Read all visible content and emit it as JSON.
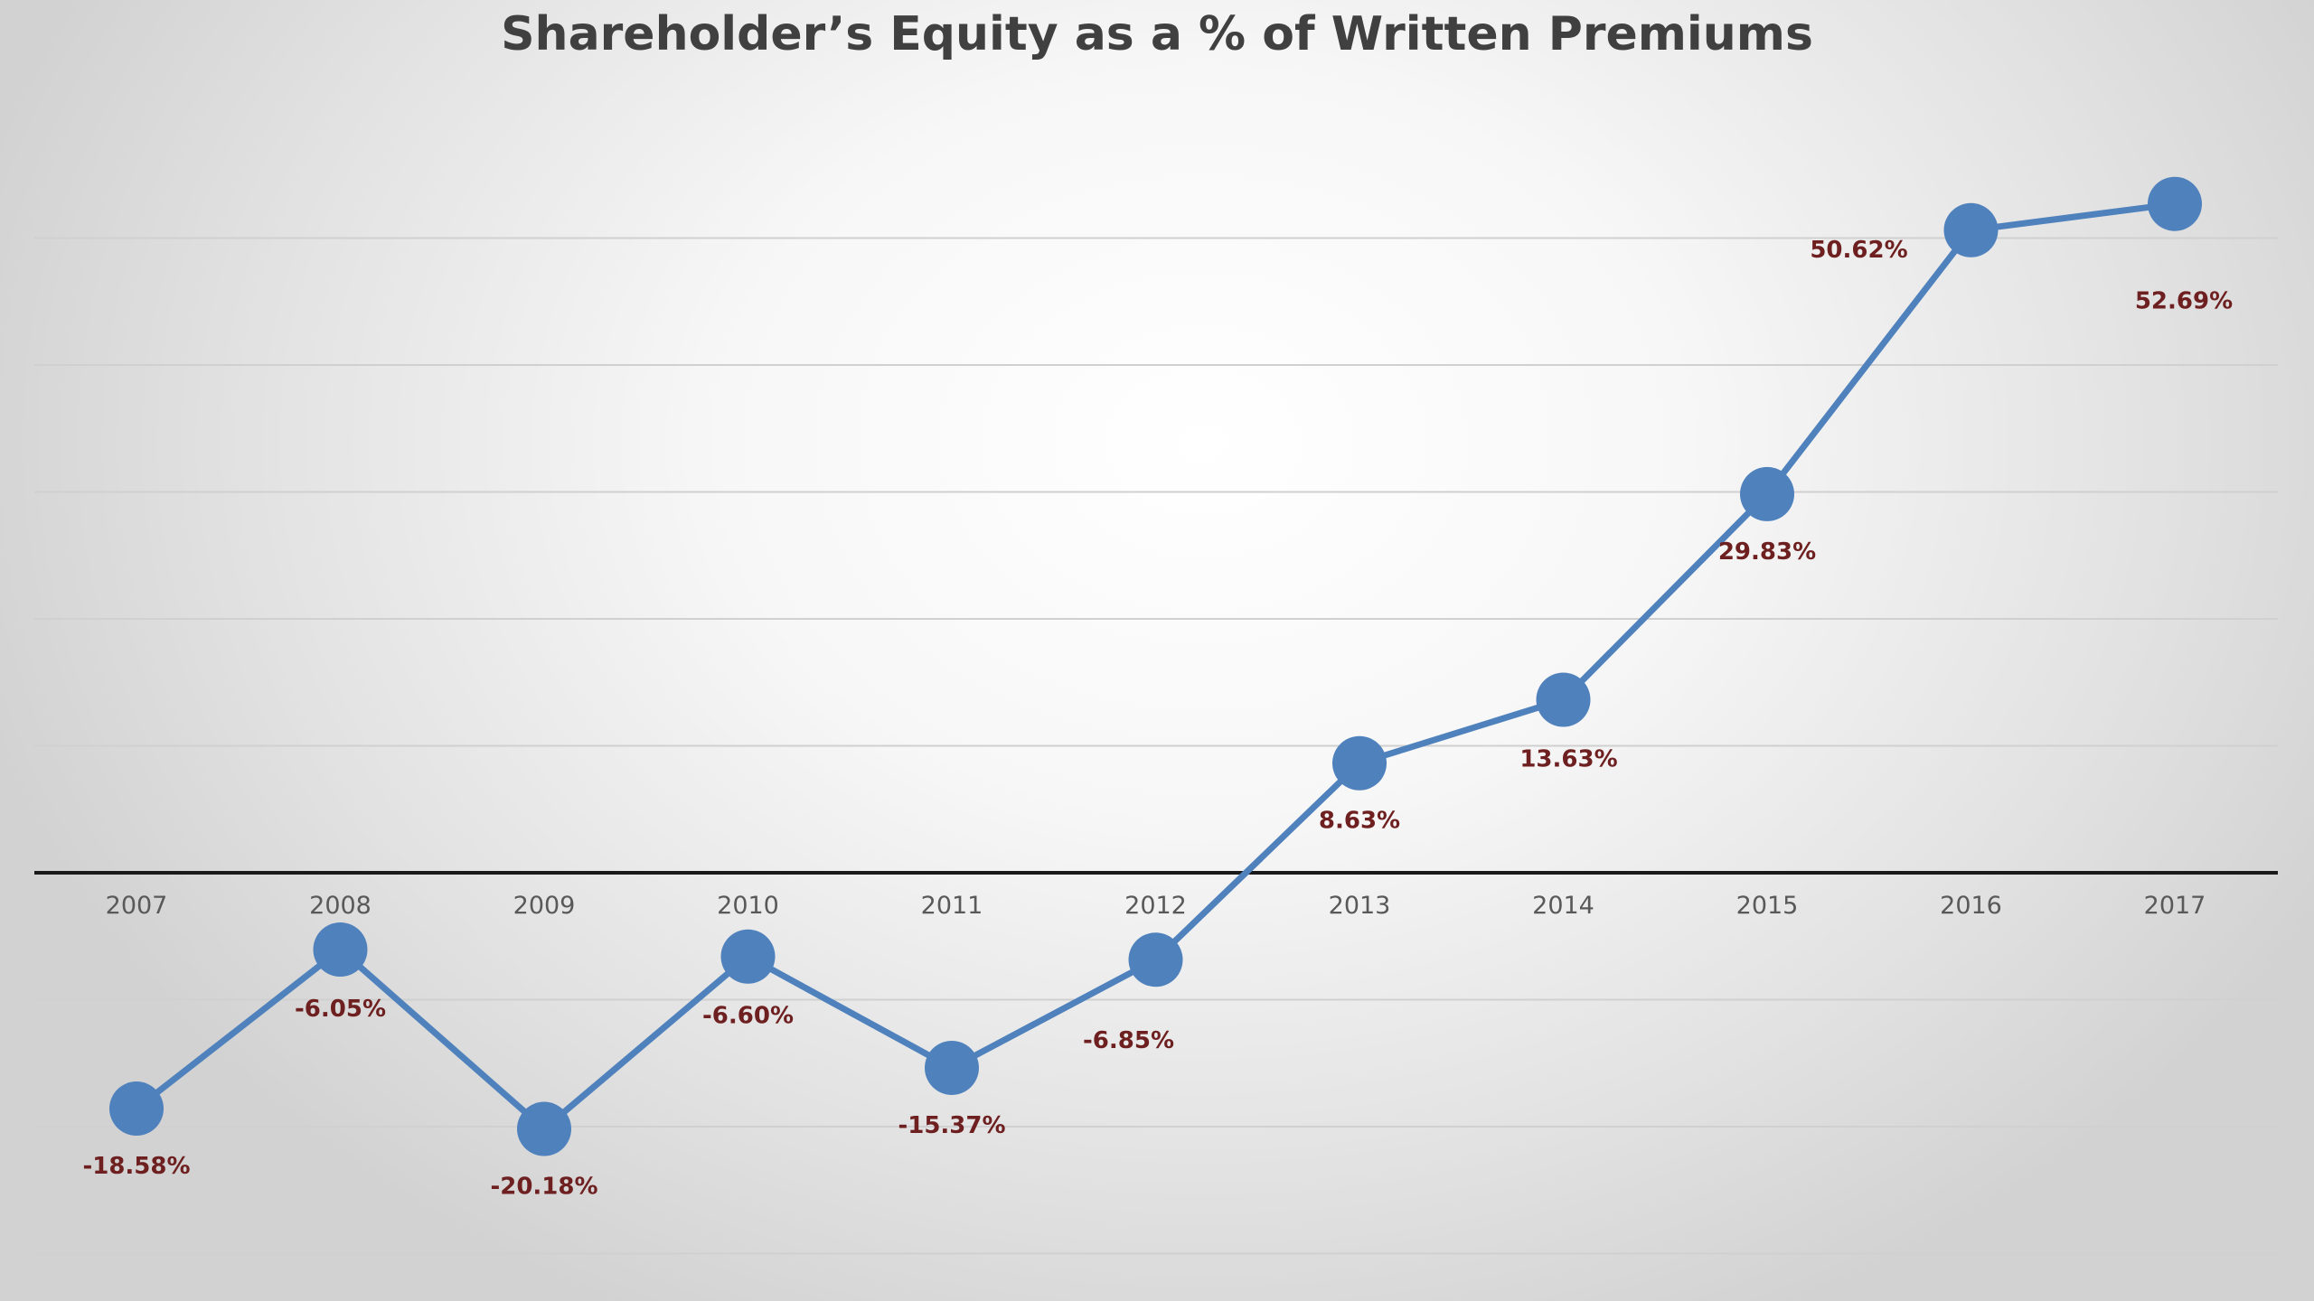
{
  "chart_data": {
    "type": "line",
    "title": "Shareholder’s Equity as a % of Written Premiums",
    "categories": [
      "2007",
      "2008",
      "2009",
      "2010",
      "2011",
      "2012",
      "2013",
      "2014",
      "2015",
      "2016",
      "2017"
    ],
    "series": [
      {
        "values": [
          -18.58,
          -6.05,
          -20.18,
          -6.6,
          -15.37,
          -6.85,
          8.63,
          13.63,
          29.83,
          50.62,
          52.69
        ],
        "labels": [
          "-18.58%",
          "-6.05%",
          "-20.18%",
          "-6.60%",
          "-15.37%",
          "-6.85%",
          "8.63%",
          "13.63%",
          "29.83%",
          "50.62%",
          "52.69%"
        ]
      }
    ],
    "ylim": [
      -30,
      50
    ],
    "grid": true,
    "legend": "none",
    "colors": {
      "series": "#4f81bd",
      "data_label": "#6e1f1f",
      "axis": "#1a1a1a",
      "tick_label": "#595959",
      "title": "#404040"
    }
  }
}
